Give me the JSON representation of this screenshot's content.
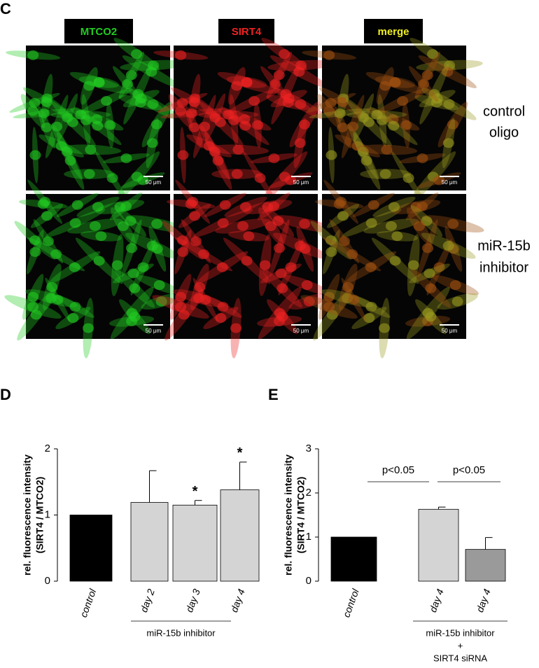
{
  "micrograph_panel": {
    "label": "C",
    "channels": [
      "MTCO2",
      "SIRT4",
      "merge"
    ],
    "channel_colors": [
      "#22cc22",
      "#ee2222",
      "#eeee22"
    ],
    "conditions": [
      [
        "control",
        "oligo"
      ],
      [
        "miR-15b",
        "inhibitor"
      ]
    ],
    "scale_bar": "50 μm"
  },
  "chart_data": [
    {
      "type": "bar",
      "panel_label": "D",
      "ylabel": [
        "rel. fluorescence intensity",
        "(SIRT4 / MTCO2)"
      ],
      "categories": [
        "control",
        "day 2",
        "day 3",
        "day 4"
      ],
      "values": [
        1.0,
        1.19,
        1.15,
        1.38
      ],
      "errors": [
        null,
        0.48,
        0.07,
        0.42
      ],
      "colors": [
        "#000000",
        "#d4d4d4",
        "#d4d4d4",
        "#d4d4d4"
      ],
      "markers": [
        null,
        null,
        "*",
        "*"
      ],
      "ylim": [
        0,
        2
      ],
      "yticks": [
        0,
        1,
        2
      ],
      "group_label": [
        "miR-15b inhibitor"
      ]
    },
    {
      "type": "bar",
      "panel_label": "E",
      "ylabel": [
        "rel. fluorescence intensity",
        "(SIRT4 / MTCO2)"
      ],
      "categories": [
        "control",
        "day 4",
        "day 4"
      ],
      "values": [
        1.0,
        1.63,
        0.72
      ],
      "errors": [
        null,
        0.05,
        0.27
      ],
      "colors": [
        "#000000",
        "#d4d4d4",
        "#9a9a9a"
      ],
      "comparisons": [
        "p<0.05",
        "p<0.05"
      ],
      "ylim": [
        0,
        3
      ],
      "yticks": [
        0,
        1,
        2,
        3
      ],
      "group_label": [
        "miR-15b inhibitor",
        "+",
        "SIRT4 siRNA"
      ]
    }
  ]
}
